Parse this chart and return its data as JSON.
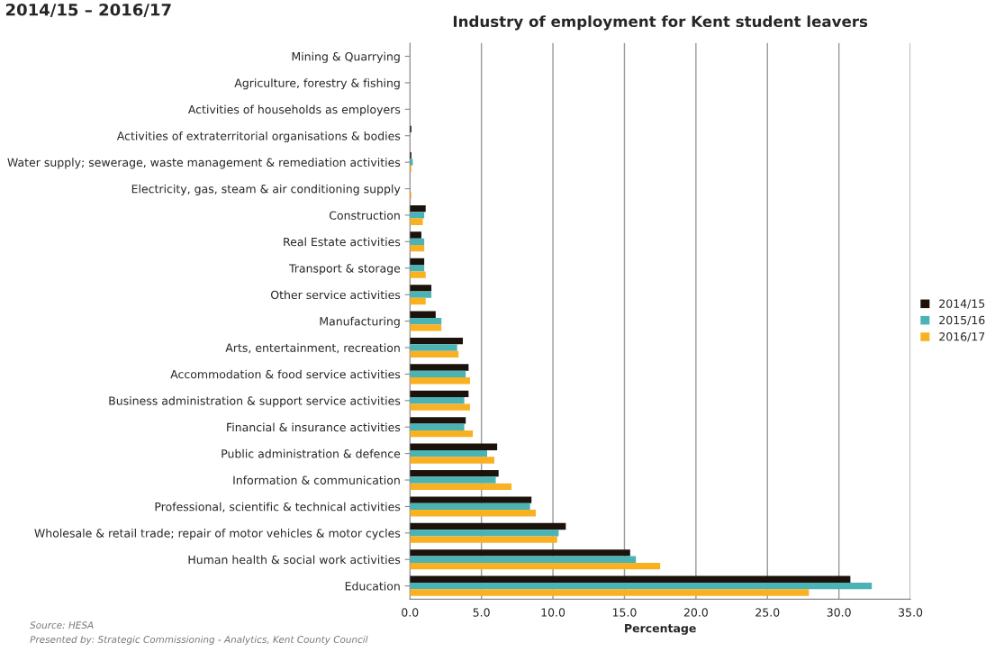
{
  "chart_data": {
    "type": "bar",
    "orientation": "horizontal",
    "title": "Industry of employment for Kent student leavers",
    "subtitle": "2014/15 – 2016/17",
    "xlabel": "Percentage",
    "categories": [
      "Mining & Quarrying",
      "Agriculture, forestry & fishing",
      "Activities of households as employers",
      "Activities of extraterritorial organisations & bodies",
      "Water supply; sewerage, waste management & remediation activities",
      "Electricity, gas, steam & air conditioning supply",
      "Construction",
      "Real Estate activities",
      "Transport & storage",
      "Other service activities",
      "Manufacturing",
      "Arts, entertainment, recreation",
      "Accommodation & food service activities",
      "Business administration & support service activities",
      "Financial & insurance activities",
      "Public administration & defence",
      "Information & communication",
      "Professional, scientific & technical activities",
      "Wholesale & retail trade; repair of motor vehicles & motor cycles",
      "Human health & social work activities",
      "Education"
    ],
    "series": [
      {
        "name": "2014/15",
        "color": "#1a120b",
        "values": [
          0,
          0,
          0,
          0.1,
          0.1,
          0,
          1.1,
          0.8,
          1.0,
          1.5,
          1.8,
          3.7,
          4.1,
          4.1,
          3.9,
          6.1,
          6.2,
          8.5,
          10.9,
          15.4,
          30.8
        ]
      },
      {
        "name": "2015/16",
        "color": "#4bb3b3",
        "values": [
          0,
          0,
          0,
          0,
          0.2,
          0,
          1.0,
          1.0,
          1.0,
          1.5,
          2.2,
          3.3,
          3.9,
          3.8,
          3.8,
          5.4,
          6.0,
          8.4,
          10.4,
          15.8,
          32.3
        ]
      },
      {
        "name": "2016/17",
        "color": "#f9b122",
        "values": [
          0,
          0,
          0,
          0,
          0.1,
          0.1,
          0.9,
          1.0,
          1.1,
          1.1,
          2.2,
          3.4,
          4.2,
          4.2,
          4.4,
          5.9,
          7.1,
          8.8,
          10.3,
          17.5,
          27.9
        ]
      }
    ],
    "xlim": [
      0,
      35
    ],
    "xticks": [
      {
        "value": 0,
        "label": "0.0"
      },
      {
        "value": 5,
        "label": "5.0"
      },
      {
        "value": 10,
        "label": "10.0"
      },
      {
        "value": 15,
        "label": "15.0"
      },
      {
        "value": 20,
        "label": "20.0"
      },
      {
        "value": 25,
        "label": "25.0"
      },
      {
        "value": 30,
        "label": "30.0"
      },
      {
        "value": 35,
        "label": "35.0"
      }
    ],
    "grid": "x",
    "legend": "right",
    "annotations": [
      "Source: HESA",
      "Presented by: Strategic Commissioning - Analytics, Kent County Council"
    ]
  }
}
